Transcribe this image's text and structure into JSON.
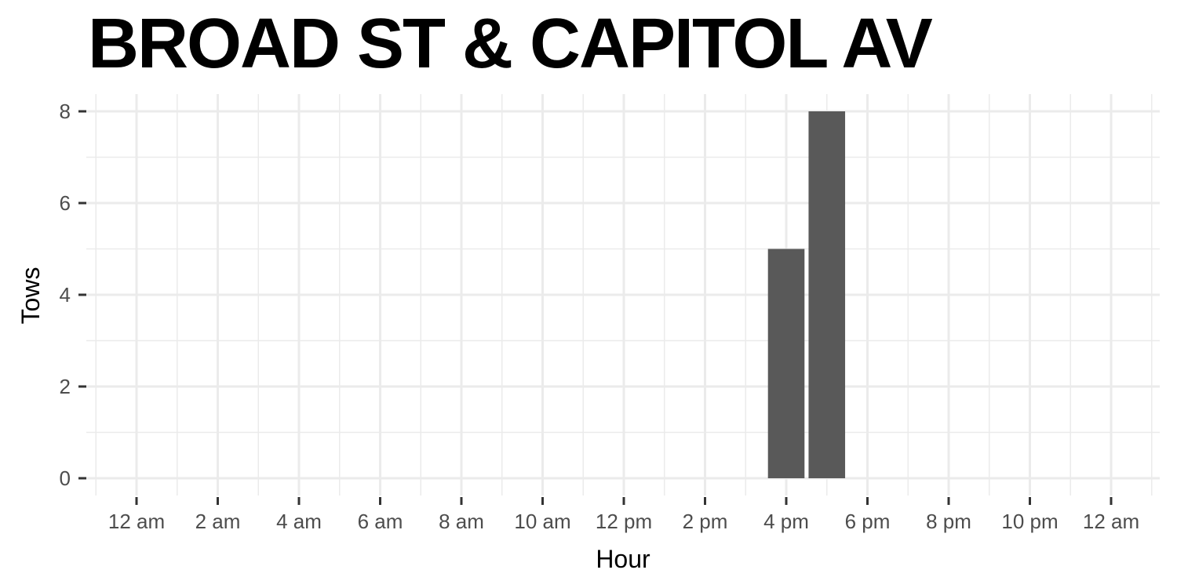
{
  "chart_data": {
    "type": "bar",
    "title": "BROAD ST & CAPITOL AV",
    "xlabel": "Hour",
    "ylabel": "Tows",
    "x_tick_labels": [
      "12 am",
      "2 am",
      "4 am",
      "6 am",
      "8 am",
      "10 am",
      "12 pm",
      "2 pm",
      "4 pm",
      "6 pm",
      "8 pm",
      "10 pm",
      "12 am"
    ],
    "y_tick_labels": [
      "0",
      "2",
      "4",
      "6",
      "8"
    ],
    "xlim": [
      -1,
      25
    ],
    "ylim": [
      0,
      8
    ],
    "grid": true,
    "bars": [
      {
        "hour": 16,
        "value": 5
      },
      {
        "hour": 17,
        "value": 8
      }
    ],
    "colors": {
      "bar": "#595959",
      "grid": "#ebebeb",
      "tick": "#333333",
      "tick_label": "#4d4d4d"
    }
  }
}
